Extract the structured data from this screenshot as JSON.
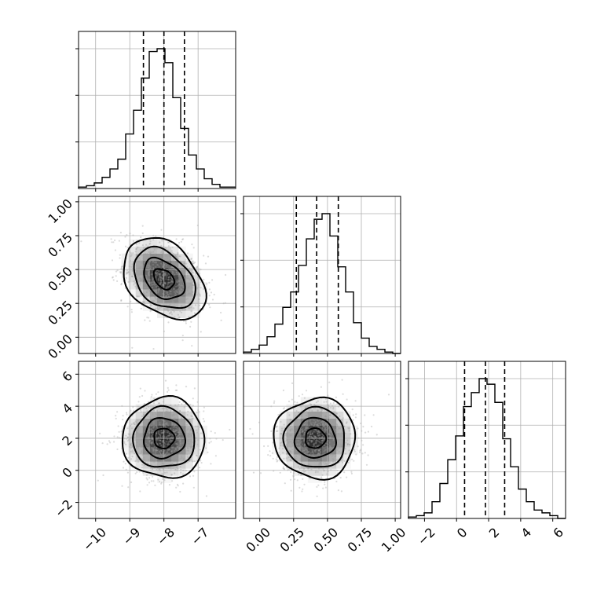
{
  "chart_data": {
    "type": "corner",
    "grid": true,
    "parameters": [
      {
        "range": [
          -10.5,
          -5.9
        ],
        "ticks": [
          -10,
          -9,
          -8,
          -7
        ],
        "tick_labels": [
          "−10",
          "−9",
          "−8",
          "−7"
        ],
        "median": -8.0,
        "quantiles": [
          -8.6,
          -8.0,
          -7.4
        ],
        "histogram": {
          "start": -10.5,
          "bin_width": 0.23,
          "counts": [
            1,
            2,
            4,
            8,
            14,
            21,
            39,
            56,
            79,
            98,
            100,
            90,
            65,
            43,
            24,
            14,
            7,
            3,
            1,
            1
          ]
        }
      },
      {
        "range": [
          -0.12,
          1.04
        ],
        "ticks": [
          0.0,
          0.25,
          0.5,
          0.75,
          1.0
        ],
        "tick_labels": [
          "0.00",
          "0.25",
          "0.50",
          "0.75",
          "1.00"
        ],
        "median": 0.42,
        "quantiles": [
          0.27,
          0.42,
          0.58
        ],
        "histogram": {
          "start": -0.12,
          "bin_width": 0.058,
          "counts": [
            1,
            3,
            6,
            12,
            21,
            33,
            44,
            63,
            82,
            96,
            100,
            84,
            62,
            44,
            22,
            11,
            5,
            3,
            1,
            0
          ]
        }
      },
      {
        "range": [
          -3.0,
          6.8
        ],
        "ticks": [
          -2,
          0,
          2,
          4,
          6
        ],
        "tick_labels": [
          "−2",
          "0",
          "2",
          "4",
          "6"
        ],
        "median": 1.8,
        "quantiles": [
          0.5,
          1.8,
          3.0
        ],
        "histogram": {
          "start": -3.0,
          "bin_width": 0.49,
          "counts": [
            1,
            2,
            4,
            12,
            25,
            42,
            59,
            80,
            90,
            100,
            96,
            83,
            57,
            37,
            21,
            12,
            6,
            4,
            2,
            0
          ]
        }
      }
    ],
    "joint": [
      {
        "x": 0,
        "y": 1,
        "center": [
          -8.0,
          0.43
        ],
        "sigma": [
          0.6,
          0.15
        ],
        "rho": -0.35
      },
      {
        "x": 0,
        "y": 2,
        "center": [
          -8.0,
          2.0
        ],
        "sigma": [
          0.6,
          1.25
        ],
        "rho": 0.0
      },
      {
        "x": 1,
        "y": 2,
        "center": [
          0.41,
          2.0
        ],
        "sigma": [
          0.15,
          1.25
        ],
        "rho": 0.0
      }
    ]
  }
}
